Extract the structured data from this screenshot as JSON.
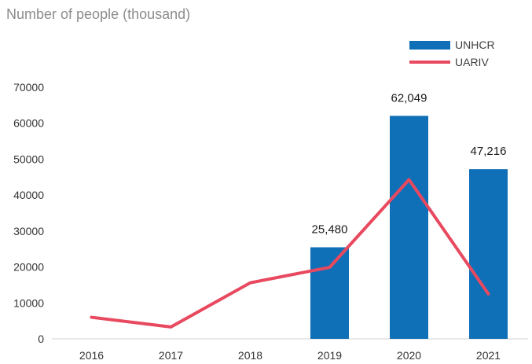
{
  "chart_data": {
    "type": "bar",
    "subtitle": "Number of people (thousand)",
    "categories": [
      "2016",
      "2017",
      "2018",
      "2019",
      "2020",
      "2021"
    ],
    "series": [
      {
        "name": "UNHCR",
        "kind": "bar",
        "color": "#0f6fb7",
        "values": [
          null,
          null,
          null,
          25480,
          62049,
          47216
        ]
      },
      {
        "name": "UARIV",
        "kind": "line",
        "color": "#e8495f",
        "values": [
          6000,
          3300,
          15600,
          19900,
          44300,
          12500
        ]
      }
    ],
    "data_labels": [
      "25,480",
      "62,049",
      "47,216"
    ],
    "ylim": [
      0,
      70000
    ],
    "yticks": [
      "0",
      "10000",
      "20000",
      "30000",
      "40000",
      "50000",
      "60000",
      "70000"
    ],
    "grid": false,
    "legend_position": "top-right"
  }
}
